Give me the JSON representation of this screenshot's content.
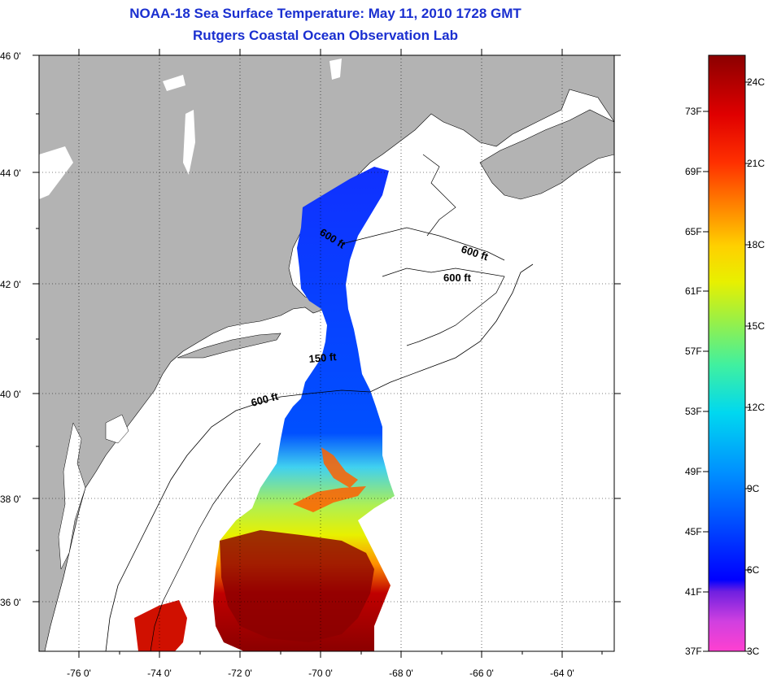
{
  "title": "NOAA-18 Sea Surface Temperature:  May 11, 2010 1728 GMT",
  "subtitle": "Rutgers Coastal Ocean Observation Lab",
  "lat_labels": [
    "46 0'",
    "44 0'",
    "42 0'",
    "40 0'",
    "38 0'",
    "36 0'"
  ],
  "lon_labels": [
    "-76 0'",
    "-74 0'",
    "-72 0'",
    "-70 0'",
    "-68 0'",
    "-66 0'",
    "-64 0'"
  ],
  "contour_labels": [
    "600 ft",
    "600 ft",
    "600 ft",
    "150 ft",
    "600 ft"
  ],
  "colorbar": {
    "fahrenheit": [
      "73F",
      "69F",
      "65F",
      "61F",
      "57F",
      "53F",
      "49F",
      "45F",
      "41F",
      "37F"
    ],
    "celsius": [
      "24C",
      "21C",
      "18C",
      "15C",
      "12C",
      "9C",
      "6C",
      "3C"
    ],
    "range_c": [
      3,
      26
    ],
    "colors": [
      "#ff40d0",
      "#b040e0",
      "#6020e0",
      "#0000ff",
      "#0050ff",
      "#00a0ff",
      "#00e0e0",
      "#40f080",
      "#b0f040",
      "#f0f000",
      "#ffb000",
      "#ff6000",
      "#ff1000",
      "#c00000",
      "#8b0000"
    ]
  },
  "colors": {
    "land": "#b3b3b3",
    "title": "#1a2fd0",
    "grid": "#000000"
  }
}
